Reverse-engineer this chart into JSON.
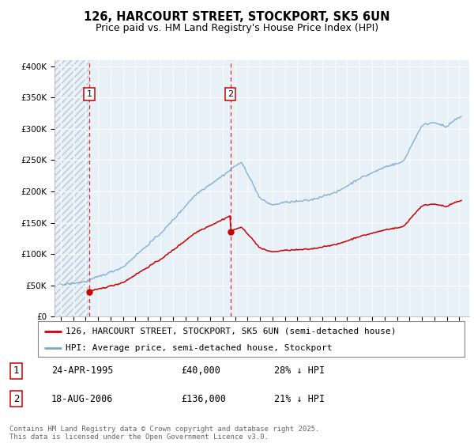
{
  "title": "126, HARCOURT STREET, STOCKPORT, SK5 6UN",
  "subtitle": "Price paid vs. HM Land Registry's House Price Index (HPI)",
  "background_color": "#ffffff",
  "plot_bg_color": "#e8f0f8",
  "hatch_color": "#b8c8d8",
  "grid_color": "#ffffff",
  "purchase1_year": 1995.29,
  "purchase1_price": 40000,
  "purchase2_year": 2006.62,
  "purchase2_price": 136000,
  "ylim_max": 410000,
  "ylim_min": 0,
  "xlim_min": 1992.5,
  "xlim_max": 2025.8,
  "legend_label1": "126, HARCOURT STREET, STOCKPORT, SK5 6UN (semi-detached house)",
  "legend_label2": "HPI: Average price, semi-detached house, Stockport",
  "annotation1_label": "1",
  "annotation2_label": "2",
  "table_row1": [
    "1",
    "24-APR-1995",
    "£40,000",
    "28% ↓ HPI"
  ],
  "table_row2": [
    "2",
    "18-AUG-2006",
    "£136,000",
    "21% ↓ HPI"
  ],
  "footer": "Contains HM Land Registry data © Crown copyright and database right 2025.\nThis data is licensed under the Open Government Licence v3.0.",
  "line_color_property": "#cc0000",
  "line_color_hpi": "#7aa8d0",
  "dot_color_property": "#cc0000",
  "vline_color": "#cc0000",
  "title_fontsize": 10.5,
  "subtitle_fontsize": 9,
  "tick_fontsize": 7.5,
  "legend_fontsize": 8,
  "table_fontsize": 8.5,
  "footer_fontsize": 6.5
}
